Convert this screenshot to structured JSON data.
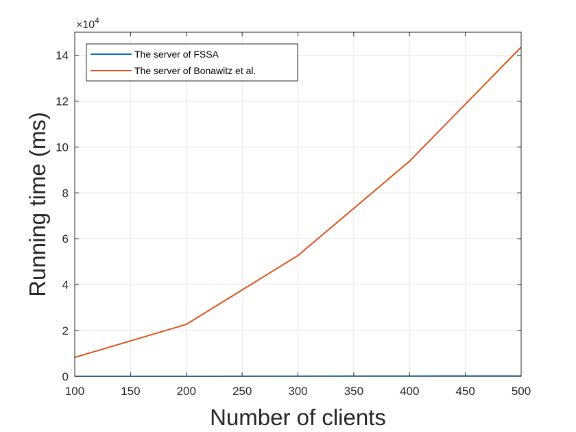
{
  "chart_data": {
    "type": "line",
    "xlabel": "Number of clients",
    "ylabel": "Running time (ms)",
    "x": [
      100,
      200,
      300,
      400,
      500
    ],
    "xlim": [
      100,
      500
    ],
    "ylim": [
      0,
      150000
    ],
    "xticks": [
      100,
      150,
      200,
      250,
      300,
      350,
      400,
      450,
      500
    ],
    "xtick_labels": [
      "100",
      "150",
      "200",
      "250",
      "300",
      "350",
      "400",
      "450",
      "500"
    ],
    "yticks": [
      0,
      20000,
      40000,
      60000,
      80000,
      100000,
      120000,
      140000
    ],
    "ytick_labels": [
      "0",
      "2",
      "4",
      "6",
      "8",
      "10",
      "12",
      "14"
    ],
    "y_exponent_label": "×10",
    "y_exponent_power": "4",
    "grid": true,
    "legend_position": "top-left",
    "series": [
      {
        "name": "The server of FSSA",
        "color": "#0072BD",
        "values": [
          60,
          90,
          120,
          160,
          200
        ]
      },
      {
        "name": "The server of Bonawitz et al.",
        "color": "#D95319",
        "values": [
          8300,
          22700,
          52700,
          93800,
          143500
        ]
      }
    ]
  }
}
